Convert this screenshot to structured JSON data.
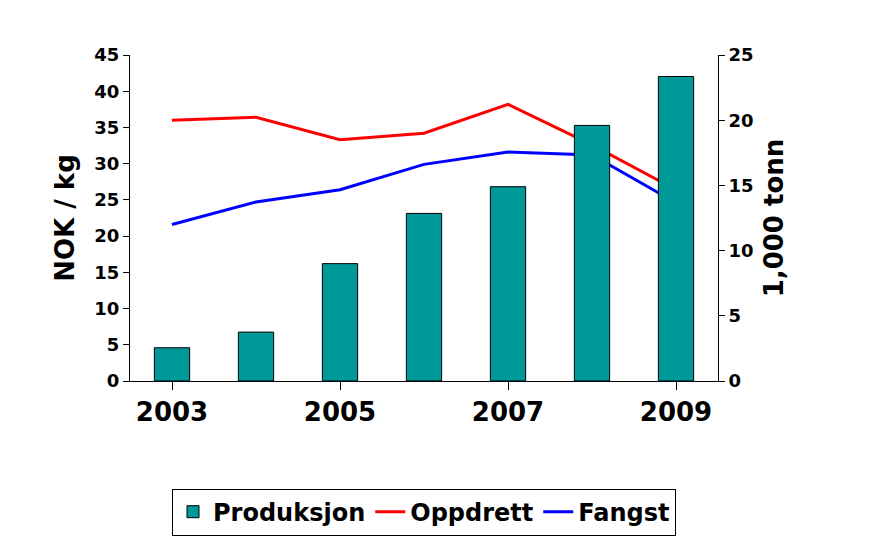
{
  "chart_data": {
    "type": "bar",
    "x": [
      2003,
      2004,
      2005,
      2006,
      2007,
      2008,
      2009
    ],
    "xlim": [
      2002.5,
      2009.5
    ],
    "xticks": [
      2003,
      2005,
      2007,
      2009
    ],
    "y_label": "NOK / kg",
    "y2_label": "1,000 tonn",
    "ylim": [
      0,
      45
    ],
    "yticks": [
      0,
      5,
      10,
      15,
      20,
      25,
      30,
      35,
      40,
      45
    ],
    "y2lim": [
      0,
      25
    ],
    "y2ticks": [
      0,
      5,
      10,
      15,
      20,
      25
    ],
    "grid": false,
    "legend": "bottom",
    "series": [
      {
        "name": "Produksjon",
        "type": "bar",
        "axis": "y2",
        "color": "#009999",
        "values": [
          2.55,
          3.75,
          9.0,
          12.85,
          14.9,
          19.6,
          23.35
        ]
      },
      {
        "name": "Oppdrett",
        "type": "line",
        "color": "#ff0000",
        "values": [
          36.0,
          36.4,
          33.3,
          34.2,
          38.2,
          32.6,
          26.4
        ]
      },
      {
        "name": "Fangst",
        "type": "line",
        "color": "#0000ff",
        "values": [
          21.6,
          24.7,
          26.4,
          29.9,
          31.6,
          31.2,
          24.6
        ]
      }
    ]
  }
}
